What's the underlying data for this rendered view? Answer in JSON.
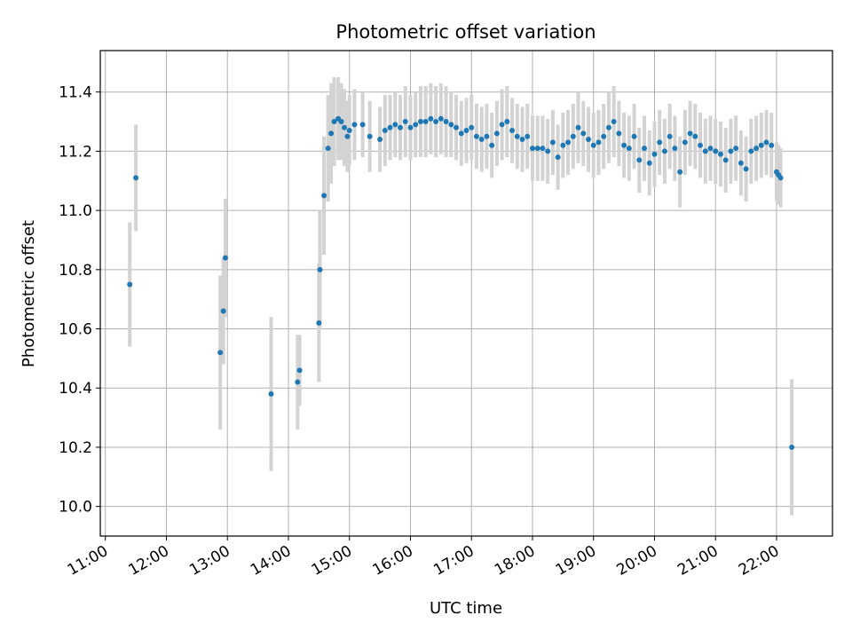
{
  "chart_data": {
    "type": "scatter",
    "title": "Photometric offset variation",
    "xlabel": "UTC time",
    "ylabel": "Photometric offset",
    "x_ticks": [
      "11:00",
      "12:00",
      "13:00",
      "14:00",
      "15:00",
      "16:00",
      "17:00",
      "18:00",
      "19:00",
      "20:00",
      "21:00",
      "22:00"
    ],
    "y_ticks": [
      "10.0",
      "10.2",
      "10.4",
      "10.6",
      "10.8",
      "11.0",
      "11.2",
      "11.4"
    ],
    "xlim": [
      "10:55",
      "22:55"
    ],
    "ylim": [
      9.9,
      11.54
    ],
    "grid": true,
    "colors": {
      "points": "#1f77b4",
      "errorbars": "#d3d3d3",
      "grid": "#b0b0b0"
    },
    "series": [
      {
        "x": [
          "11:24",
          "11:30",
          "12:53",
          "12:56",
          "12:58",
          "13:43",
          "14:09",
          "14:11",
          "14:30",
          "14:31",
          "14:35",
          "14:39",
          "14:42",
          "14:45",
          "14:49",
          "14:52",
          "14:55",
          "14:58",
          "15:00",
          "15:05",
          "15:13",
          "15:20",
          "15:30",
          "15:35",
          "15:40",
          "15:45",
          "15:50",
          "15:55",
          "16:00",
          "16:05",
          "16:10",
          "16:15",
          "16:20",
          "16:25",
          "16:30",
          "16:35",
          "16:40",
          "16:45",
          "16:50",
          "16:55",
          "17:00",
          "17:05",
          "17:10",
          "17:15",
          "17:20",
          "17:25",
          "17:30",
          "17:35",
          "17:40",
          "17:45",
          "17:50",
          "17:55",
          "18:00",
          "18:05",
          "18:10",
          "18:15",
          "18:20",
          "18:25",
          "18:30",
          "18:35",
          "18:40",
          "18:45",
          "18:50",
          "18:55",
          "19:00",
          "19:05",
          "19:10",
          "19:15",
          "19:20",
          "19:25",
          "19:30",
          "19:35",
          "19:40",
          "19:45",
          "19:50",
          "19:55",
          "20:00",
          "20:05",
          "20:10",
          "20:15",
          "20:20",
          "20:25",
          "20:30",
          "20:35",
          "20:40",
          "20:45",
          "20:50",
          "20:55",
          "21:00",
          "21:05",
          "21:10",
          "21:15",
          "21:20",
          "21:25",
          "21:30",
          "21:35",
          "21:40",
          "21:45",
          "21:50",
          "21:55",
          "22:00",
          "22:02",
          "22:04",
          "22:15"
        ],
        "y": [
          10.75,
          11.11,
          10.52,
          10.66,
          10.84,
          10.38,
          10.42,
          10.46,
          10.62,
          10.8,
          11.05,
          11.21,
          11.26,
          11.3,
          11.31,
          11.3,
          11.28,
          11.25,
          11.27,
          11.29,
          11.29,
          11.25,
          11.24,
          11.27,
          11.28,
          11.29,
          11.28,
          11.3,
          11.28,
          11.29,
          11.3,
          11.3,
          11.31,
          11.3,
          11.31,
          11.3,
          11.29,
          11.28,
          11.26,
          11.27,
          11.28,
          11.25,
          11.24,
          11.25,
          11.22,
          11.26,
          11.29,
          11.3,
          11.27,
          11.25,
          11.24,
          11.25,
          11.21,
          11.21,
          11.21,
          11.2,
          11.23,
          11.18,
          11.22,
          11.23,
          11.25,
          11.28,
          11.26,
          11.24,
          11.22,
          11.23,
          11.25,
          11.28,
          11.3,
          11.26,
          11.22,
          11.21,
          11.25,
          11.17,
          11.21,
          11.16,
          11.19,
          11.23,
          11.2,
          11.25,
          11.21,
          11.13,
          11.23,
          11.26,
          11.25,
          11.22,
          11.2,
          11.21,
          11.2,
          11.19,
          11.17,
          11.2,
          11.21,
          11.16,
          11.14,
          11.2,
          11.21,
          11.22,
          11.23,
          11.22,
          11.13,
          11.12,
          11.11,
          10.2
        ],
        "err": [
          0.21,
          0.18,
          0.26,
          0.18,
          0.2,
          0.26,
          0.16,
          0.12,
          0.2,
          0.2,
          0.2,
          0.18,
          0.17,
          0.15,
          0.14,
          0.13,
          0.13,
          0.12,
          0.12,
          0.12,
          0.11,
          0.12,
          0.11,
          0.12,
          0.11,
          0.11,
          0.11,
          0.12,
          0.11,
          0.11,
          0.12,
          0.12,
          0.12,
          0.12,
          0.12,
          0.12,
          0.11,
          0.11,
          0.11,
          0.11,
          0.11,
          0.11,
          0.11,
          0.11,
          0.11,
          0.11,
          0.12,
          0.12,
          0.11,
          0.11,
          0.11,
          0.11,
          0.11,
          0.11,
          0.11,
          0.11,
          0.11,
          0.11,
          0.11,
          0.11,
          0.11,
          0.12,
          0.11,
          0.11,
          0.11,
          0.11,
          0.11,
          0.12,
          0.12,
          0.11,
          0.11,
          0.11,
          0.11,
          0.11,
          0.11,
          0.11,
          0.11,
          0.11,
          0.11,
          0.11,
          0.11,
          0.12,
          0.11,
          0.11,
          0.11,
          0.11,
          0.11,
          0.11,
          0.11,
          0.11,
          0.11,
          0.11,
          0.11,
          0.11,
          0.11,
          0.11,
          0.11,
          0.11,
          0.11,
          0.11,
          0.1,
          0.1,
          0.1,
          0.23
        ]
      }
    ]
  }
}
